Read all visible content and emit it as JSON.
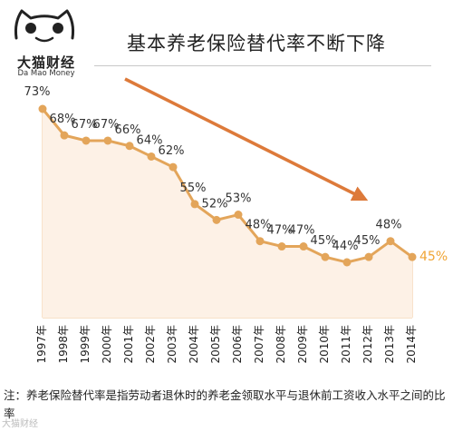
{
  "brand": {
    "name_cn": "大猫财经",
    "name_en": "Da Mao Money"
  },
  "chart_data": {
    "type": "line",
    "title": "基本养老保险替代率不断下降",
    "categories": [
      "1997年",
      "1998年",
      "1999年",
      "2000年",
      "2001年",
      "2002年",
      "2003年",
      "2004年",
      "2005年",
      "2006年",
      "2007年",
      "2008年",
      "2009年",
      "2010年",
      "2011年",
      "2012年",
      "2013年",
      "2014年"
    ],
    "values": [
      73,
      68,
      67,
      67,
      66,
      64,
      62,
      55,
      52,
      53,
      48,
      47,
      47,
      45,
      44,
      45,
      48,
      45
    ],
    "value_labels": [
      "73%",
      "68%",
      "67%",
      "67%",
      "66%",
      "64%",
      "62%",
      "55%",
      "52%",
      "53%",
      "48%",
      "47%",
      "47%",
      "45%",
      "44%",
      "45%",
      "48%",
      "45%"
    ],
    "highlight_index": 17,
    "ylim": [
      30,
      80
    ],
    "grid": "vertical",
    "colors": {
      "line": "#e3a55a",
      "marker": "#e3a55a",
      "fill": "#fdf1e6",
      "grid": "#f2cfa8",
      "highlight": "#f0a535",
      "arrow": "#dd7a3a"
    },
    "annotation": "trend-arrow-down"
  },
  "note": "注：养老保险替代率是指劳动者退休时的养老金领取水平与退休前工资收入水平之间的比率",
  "watermark": "大猫财经"
}
